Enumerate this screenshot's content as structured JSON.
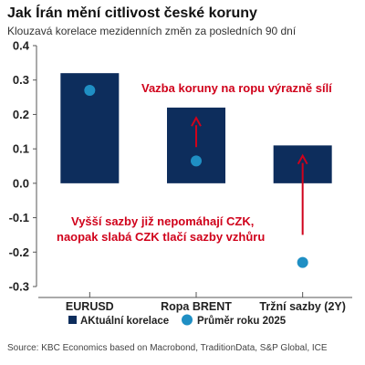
{
  "chart_data": {
    "type": "bar",
    "title": "Jak Írán mění citlivost české koruny",
    "subtitle": "Klouzavá korelace mezidenních změn za posledních 90 dní",
    "categories": [
      "EURUSD",
      "Ropa BRENT",
      "Tržní sazby (2Y)"
    ],
    "series": [
      {
        "name": "AKtuální korelace",
        "type": "bar",
        "values": [
          0.32,
          0.22,
          0.11
        ],
        "color": "#0d2d5c"
      },
      {
        "name": "Průměr roku 2025",
        "type": "scatter",
        "values": [
          0.27,
          0.065,
          -0.23
        ],
        "color": "#1f8fc4"
      }
    ],
    "ylim": [
      -0.3,
      0.4
    ],
    "yticks": [
      0.4,
      0.3,
      0.2,
      0.1,
      0.0,
      -0.1,
      -0.2,
      -0.3
    ],
    "ytick_labels": [
      "0.4",
      "0.3",
      "0.2",
      "0.1",
      "0.0",
      "-0.1",
      "-0.2",
      "-0.3"
    ],
    "grid": false,
    "legend_position": "bottom",
    "annotations": [
      {
        "text": "Vazba koruny na ropu výrazně sílí",
        "color": "#d0021b"
      },
      {
        "text": [
          "Vyšší sazby již nepomáhají CZK,",
          "naopak slabá CZK tlačí sazby vzhůru"
        ],
        "color": "#d0021b"
      }
    ],
    "arrows": [
      {
        "category": "Ropa BRENT",
        "from": 0.105,
        "to": 0.19
      },
      {
        "category": "Tržní sazby (2Y)",
        "from": -0.15,
        "to": 0.08
      }
    ],
    "source": "Source: KBC Economics based on Macrobond, TraditionData, S&P Global, ICE"
  }
}
